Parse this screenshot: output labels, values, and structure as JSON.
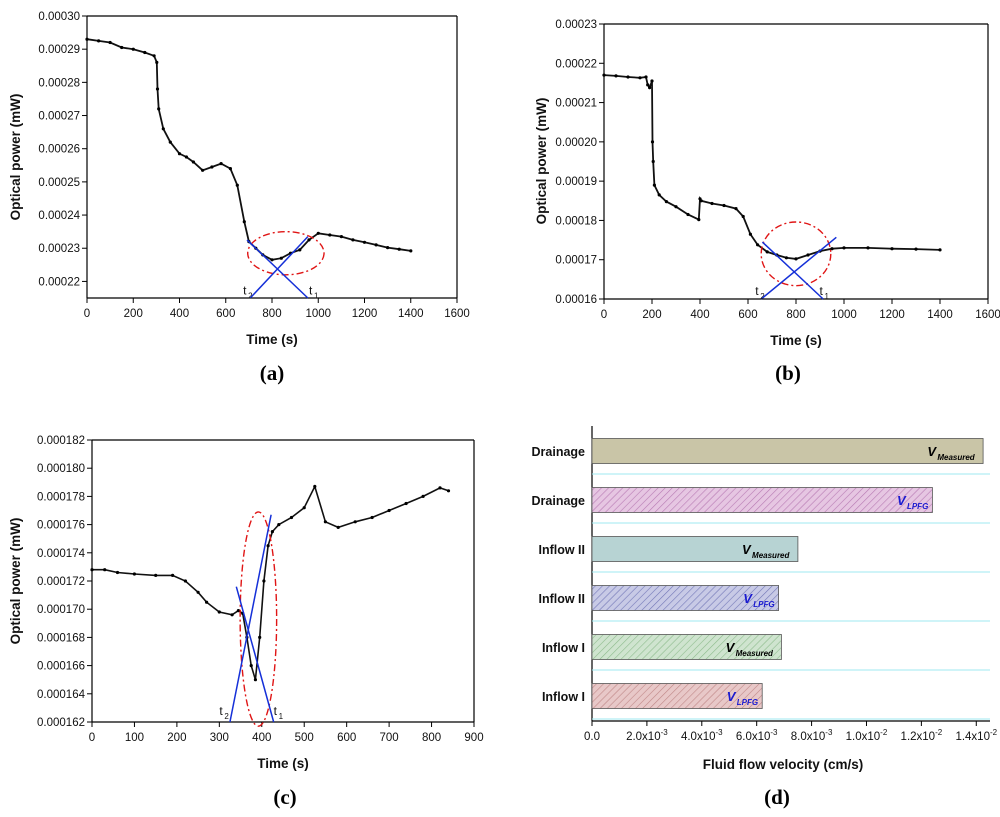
{
  "chart_data": [
    {
      "id": "a",
      "type": "scatter",
      "panel_label": "(a)",
      "xlabel": "Time (s)",
      "ylabel": "Optical power (mW)",
      "xlim": [
        0,
        1600
      ],
      "ylim": [
        0.000215,
        0.0003
      ],
      "xticks": [
        0,
        200,
        400,
        600,
        800,
        1000,
        1200,
        1400,
        1600
      ],
      "xtick_labels": [
        "0",
        "200",
        "400",
        "600",
        "800",
        "1000",
        "1200",
        "1400",
        "1600"
      ],
      "yticks": [
        0.00022,
        0.00023,
        0.00024,
        0.00025,
        0.00026,
        0.00027,
        0.00028,
        0.00029,
        0.0003
      ],
      "ytick_labels": [
        "0.00022",
        "0.00023",
        "0.00024",
        "0.00025",
        "0.00026",
        "0.00027",
        "0.00028",
        "0.00029",
        "0.00030"
      ],
      "series": [
        {
          "name": "Optical power",
          "x": [
            0,
            50,
            100,
            150,
            200,
            250,
            290,
            302,
            305,
            310,
            330,
            360,
            400,
            430,
            460,
            500,
            540,
            580,
            620,
            650,
            680,
            700,
            730,
            760,
            800,
            840,
            880,
            920,
            960,
            1000,
            1050,
            1100,
            1150,
            1200,
            1250,
            1300,
            1350,
            1400
          ],
          "y": [
            0.000293,
            0.0002925,
            0.000292,
            0.0002905,
            0.00029,
            0.000289,
            0.000288,
            0.000286,
            0.000278,
            0.000272,
            0.000266,
            0.000262,
            0.0002585,
            0.0002575,
            0.000256,
            0.0002535,
            0.0002545,
            0.0002555,
            0.000254,
            0.000249,
            0.000238,
            0.000232,
            0.00023,
            0.000228,
            0.0002265,
            0.000227,
            0.0002285,
            0.0002295,
            0.0002325,
            0.0002345,
            0.000234,
            0.0002335,
            0.0002325,
            0.0002318,
            0.000231,
            0.0002302,
            0.0002297,
            0.0002292
          ]
        }
      ],
      "fit_lines": [
        {
          "name": "left tangent",
          "points": [
            [
              706,
              0.000215
            ],
            [
              955,
              0.0002335
            ]
          ]
        },
        {
          "name": "right tangent",
          "points": [
            [
              692,
              0.0002325
            ],
            [
              955,
              0.000215
            ]
          ]
        }
      ],
      "circle": {
        "cx": 860,
        "cy": 0.0002285,
        "rx": 165,
        "ry": 6.5e-06
      },
      "annotations": [
        {
          "label": "t",
          "sub": "2",
          "x": 675,
          "y": 0.000216
        },
        {
          "label": "t",
          "sub": "1",
          "x": 960,
          "y": 0.000216
        }
      ]
    },
    {
      "id": "b",
      "type": "scatter",
      "panel_label": "(b)",
      "xlabel": "Time (s)",
      "ylabel": "Optical power (mW)",
      "xlim": [
        0,
        1600
      ],
      "ylim": [
        0.00016,
        0.00023
      ],
      "xticks": [
        0,
        200,
        400,
        600,
        800,
        1000,
        1200,
        1400,
        1600
      ],
      "xtick_labels": [
        "0",
        "200",
        "400",
        "600",
        "800",
        "1000",
        "1200",
        "1400",
        "1600"
      ],
      "yticks": [
        0.00016,
        0.00017,
        0.00018,
        0.00019,
        0.0002,
        0.00021,
        0.00022,
        0.00023
      ],
      "ytick_labels": [
        "0.00016",
        "0.00017",
        "0.00018",
        "0.00019",
        "0.00020",
        "0.00021",
        "0.00022",
        "0.00023"
      ],
      "series": [
        {
          "name": "Optical power",
          "x": [
            0,
            50,
            100,
            150,
            175,
            182,
            190,
            200,
            202,
            205,
            210,
            230,
            260,
            300,
            350,
            395,
            400,
            405,
            450,
            500,
            550,
            580,
            610,
            640,
            680,
            720,
            760,
            800,
            850,
            900,
            950,
            1000,
            1100,
            1200,
            1300,
            1400
          ],
          "y": [
            0.000217,
            0.0002168,
            0.0002165,
            0.0002163,
            0.0002165,
            0.0002145,
            0.0002138,
            0.0002155,
            0.0002,
            0.000195,
            0.000189,
            0.0001865,
            0.0001848,
            0.0001835,
            0.0001815,
            0.0001802,
            0.0001855,
            0.000185,
            0.0001843,
            0.0001838,
            0.000183,
            0.000181,
            0.0001765,
            0.0001738,
            0.000172,
            0.0001712,
            0.0001705,
            0.0001702,
            0.0001712,
            0.0001722,
            0.0001728,
            0.000173,
            0.000173,
            0.0001728,
            0.0001727,
            0.0001725
          ]
        }
      ],
      "fit_lines": [
        {
          "name": "left tangent",
          "points": [
            [
              655,
              0.00016
            ],
            [
              968,
              0.0001757
            ]
          ]
        },
        {
          "name": "right tangent",
          "points": [
            [
              660,
              0.0001745
            ],
            [
              913,
              0.00016
            ]
          ]
        }
      ],
      "circle": {
        "cx": 800,
        "cy": 0.0001715,
        "rx": 145,
        "ry": 8.1e-06
      },
      "annotations": [
        {
          "label": "t",
          "sub": "2",
          "x": 630,
          "y": 0.000161
        },
        {
          "label": "t",
          "sub": "1",
          "x": 898,
          "y": 0.000161
        }
      ]
    },
    {
      "id": "c",
      "type": "scatter",
      "panel_label": "(c)",
      "xlabel": "Time (s)",
      "ylabel": "Optical power (mW)",
      "xlim": [
        0,
        900
      ],
      "ylim": [
        0.000162,
        0.000182
      ],
      "xticks": [
        0,
        100,
        200,
        300,
        400,
        500,
        600,
        700,
        800,
        900
      ],
      "xtick_labels": [
        "0",
        "100",
        "200",
        "300",
        "400",
        "500",
        "600",
        "700",
        "800",
        "900"
      ],
      "yticks": [
        0.000162,
        0.000164,
        0.000166,
        0.000168,
        0.00017,
        0.000172,
        0.000174,
        0.000176,
        0.000178,
        0.00018,
        0.000182
      ],
      "ytick_labels": [
        "0.000162",
        "0.000164",
        "0.000166",
        "0.000168",
        "0.000170",
        "0.000172",
        "0.000174",
        "0.000176",
        "0.000178",
        "0.000180",
        "0.000182"
      ],
      "series": [
        {
          "name": "Optical power",
          "x": [
            0,
            30,
            60,
            100,
            150,
            190,
            220,
            250,
            270,
            300,
            330,
            345,
            355,
            365,
            375,
            385,
            395,
            405,
            415,
            425,
            440,
            470,
            500,
            525,
            550,
            580,
            620,
            660,
            700,
            740,
            780,
            820,
            840
          ],
          "y": [
            0.0001728,
            0.0001728,
            0.0001726,
            0.0001725,
            0.0001724,
            0.0001724,
            0.000172,
            0.0001712,
            0.0001705,
            0.0001698,
            0.0001696,
            0.0001699,
            0.0001697,
            0.000168,
            0.000166,
            0.000165,
            0.000168,
            0.000172,
            0.0001745,
            0.0001755,
            0.000176,
            0.0001765,
            0.0001772,
            0.0001787,
            0.0001762,
            0.0001758,
            0.0001762,
            0.0001765,
            0.000177,
            0.0001775,
            0.000178,
            0.0001786,
            0.0001784
          ]
        }
      ],
      "fit_lines": [
        {
          "name": "left tangent",
          "points": [
            [
              325,
              0.000162
            ],
            [
              422,
              0.0001767
            ]
          ]
        },
        {
          "name": "right tangent",
          "points": [
            [
              340,
              0.0001716
            ],
            [
              428,
              0.000162
            ]
          ]
        }
      ],
      "circle": {
        "cx": 392,
        "cy": 0.0001693,
        "rx": 43,
        "ry": 7.6e-06
      },
      "annotations": [
        {
          "label": "t",
          "sub": "2",
          "x": 300,
          "y": 0.0001625
        },
        {
          "label": "t",
          "sub": "1",
          "x": 428,
          "y": 0.0001625
        }
      ]
    },
    {
      "id": "d",
      "type": "bar",
      "orientation": "horizontal",
      "panel_label": "(d)",
      "xlabel": "Fluid flow velocity (cm/s)",
      "xlim": [
        0,
        0.0145
      ],
      "xtick_values": [
        0,
        0.002,
        0.004,
        0.006,
        0.008,
        0.01,
        0.012,
        0.014
      ],
      "xtick_labels": [
        {
          "base": "0.0",
          "exp": ""
        },
        {
          "base": "2.0x10",
          "exp": "-3"
        },
        {
          "base": "4.0x10",
          "exp": "-3"
        },
        {
          "base": "6.0x10",
          "exp": "-3"
        },
        {
          "base": "8.0x10",
          "exp": "-3"
        },
        {
          "base": "1.0x10",
          "exp": "-2"
        },
        {
          "base": "1.2x10",
          "exp": "-2"
        },
        {
          "base": "1.4x10",
          "exp": "-2"
        }
      ],
      "categories": [
        "Drainage",
        "Drainage",
        "Inflow II",
        "Inflow II",
        "Inflow I",
        "Inflow I"
      ],
      "values": [
        0.01425,
        0.0124,
        0.0075,
        0.0068,
        0.0069,
        0.0062
      ],
      "bar_labels": [
        {
          "main": "V",
          "sub": "Measured"
        },
        {
          "main": "V",
          "sub": "LPFG"
        },
        {
          "main": "V",
          "sub": "Measured"
        },
        {
          "main": "V",
          "sub": "LPFG"
        },
        {
          "main": "V",
          "sub": "Measured"
        },
        {
          "main": "V",
          "sub": "LPFG"
        }
      ],
      "bar_colors": [
        "#c9c5a7",
        "#dcaed8",
        "#b7d3d3",
        "#b6b8dc",
        "#bcd7bb",
        "#dcb3b3"
      ],
      "bar_patterns": [
        "solid",
        "hatch",
        "solid",
        "hatch",
        "hatch",
        "hatch"
      ],
      "label_colors": [
        "#000000",
        "#1a1ad0",
        "#000000",
        "#1a1ad0",
        "#000000",
        "#1a1ad0"
      ],
      "separator_color": "#9feaf0"
    }
  ]
}
